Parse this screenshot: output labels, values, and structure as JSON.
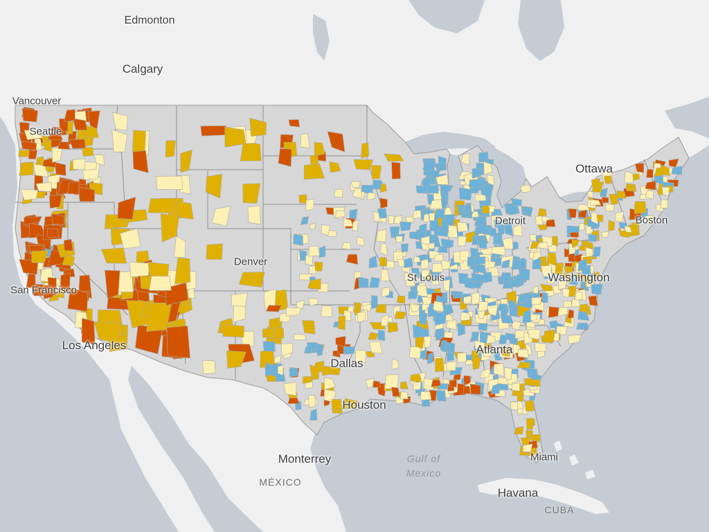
{
  "map": {
    "colors": {
      "water": "#c6ccd3",
      "land": "#f0f0f0",
      "usa_base": "#d7d7d7",
      "county_border": "#a9a9a9",
      "category_dark_orange": "#d35400",
      "category_gold": "#e0b000",
      "category_light_yellow": "#fdf0b4",
      "category_blue": "#6cb2d8"
    },
    "labels": {
      "edmonton": "Edmonton",
      "calgary": "Calgary",
      "vancouver": "Vancouver",
      "seattle": "Seattle",
      "ottawa": "Ottawa",
      "detroit": "Detroit",
      "boston": "Boston",
      "denver": "Denver",
      "st_louis": "St Louis",
      "washington": "Washington",
      "san_francisco": "San Francisco",
      "los_angeles": "Los Angeles",
      "dallas": "Dallas",
      "atlanta": "Atlanta",
      "houston": "Houston",
      "monterrey": "Monterrey",
      "mexico_country": "MÉXICO",
      "gulf_line1": "Gulf of",
      "gulf_line2": "Mexico",
      "miami": "Miami",
      "havana": "Havana",
      "cuba_country": "CUBA"
    }
  }
}
